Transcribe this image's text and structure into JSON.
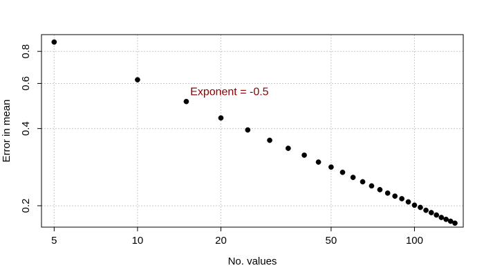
{
  "chart_data": {
    "type": "scatter",
    "title": "",
    "xlabel": "No. values",
    "ylabel": "Error in mean",
    "x_scale": "log",
    "y_scale": "log",
    "xlim": [
      4.5,
      150
    ],
    "ylim": [
      0.165,
      0.93
    ],
    "x_ticks": [
      5,
      10,
      20,
      50,
      100
    ],
    "y_ticks": [
      0.2,
      0.4,
      0.6,
      0.8
    ],
    "grid": true,
    "annotation": {
      "text": "Exponent = -0.5",
      "x": 15.5,
      "y": 0.56,
      "color": "#8b0000"
    },
    "series": [
      {
        "color": "#000000",
        "points": [
          {
            "x": 5,
            "y": 0.87
          },
          {
            "x": 10,
            "y": 0.62
          },
          {
            "x": 15,
            "y": 0.51
          },
          {
            "x": 20,
            "y": 0.44
          },
          {
            "x": 25,
            "y": 0.395
          },
          {
            "x": 30,
            "y": 0.36
          },
          {
            "x": 35,
            "y": 0.335
          },
          {
            "x": 40,
            "y": 0.315
          },
          {
            "x": 45,
            "y": 0.296
          },
          {
            "x": 50,
            "y": 0.283
          },
          {
            "x": 55,
            "y": 0.27
          },
          {
            "x": 60,
            "y": 0.258
          },
          {
            "x": 65,
            "y": 0.248
          },
          {
            "x": 70,
            "y": 0.239
          },
          {
            "x": 75,
            "y": 0.231
          },
          {
            "x": 80,
            "y": 0.224
          },
          {
            "x": 85,
            "y": 0.218
          },
          {
            "x": 90,
            "y": 0.213
          },
          {
            "x": 95,
            "y": 0.207
          },
          {
            "x": 100,
            "y": 0.201
          },
          {
            "x": 105,
            "y": 0.197
          },
          {
            "x": 110,
            "y": 0.192
          },
          {
            "x": 115,
            "y": 0.188
          },
          {
            "x": 120,
            "y": 0.184
          },
          {
            "x": 125,
            "y": 0.18
          },
          {
            "x": 130,
            "y": 0.177
          },
          {
            "x": 135,
            "y": 0.174
          },
          {
            "x": 140,
            "y": 0.171
          }
        ]
      }
    ]
  }
}
